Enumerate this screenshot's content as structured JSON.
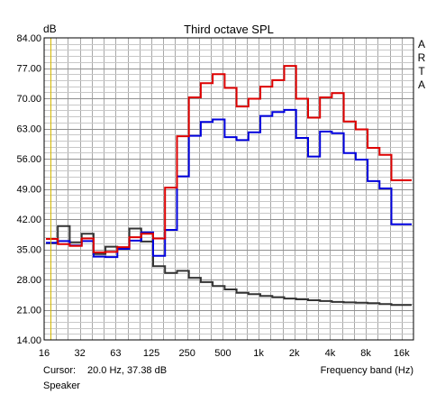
{
  "chart_data": {
    "type": "line",
    "title": "Third octave SPL",
    "ylabel": "dB",
    "xlabel": "Frequency band (Hz)",
    "brand": "ARTA",
    "cursor_label": "Cursor:",
    "cursor_value": "20.0 Hz, 37.38 dB",
    "device_label": "Speaker",
    "ylim": [
      14,
      84
    ],
    "y_ticks": [
      "84.00",
      "77.00",
      "70.00",
      "63.00",
      "56.00",
      "49.00",
      "42.00",
      "35.00",
      "28.00",
      "21.00",
      "14.00"
    ],
    "x_ticks": [
      "16",
      "32",
      "63",
      "125",
      "250",
      "500",
      "1k",
      "2k",
      "4k",
      "8k",
      "16k"
    ],
    "bands": [
      "20",
      "25",
      "31.5",
      "40",
      "50",
      "63",
      "80",
      "100",
      "125",
      "160",
      "200",
      "250",
      "315",
      "400",
      "500",
      "630",
      "800",
      "1k",
      "1.25k",
      "1.6k",
      "2k",
      "2.5k",
      "3.15k",
      "4k",
      "5k",
      "6.3k",
      "8k",
      "10k",
      "12.5k",
      "16k",
      "20k"
    ],
    "grid": true,
    "cursor_band_index": 0,
    "series": [
      {
        "color": "#dd0000",
        "values": [
          37.4,
          36.2,
          35.8,
          37.5,
          34.3,
          34.4,
          35.5,
          37.8,
          38.6,
          37.5,
          49.3,
          61.2,
          70.2,
          73.5,
          75.6,
          72.4,
          68.1,
          69.9,
          72.7,
          74.2,
          77.5,
          69.9,
          65.5,
          70.2,
          71.2,
          64.6,
          62.8,
          58.5,
          56.9,
          51.0,
          51.0
        ]
      },
      {
        "color": "#0000dd",
        "values": [
          36.5,
          36.9,
          35.9,
          36.9,
          33.3,
          33.2,
          35.1,
          37.0,
          38.9,
          33.5,
          39.5,
          51.9,
          61.3,
          64.5,
          65.1,
          61.0,
          60.3,
          62.1,
          65.9,
          66.8,
          67.3,
          60.8,
          56.5,
          62.3,
          61.9,
          57.3,
          55.8,
          50.8,
          49.1,
          40.8,
          40.8
        ]
      },
      {
        "color": "#333333",
        "values": [
          36.4,
          40.4,
          36.6,
          38.6,
          33.9,
          35.6,
          35.3,
          39.8,
          36.8,
          31.1,
          29.5,
          30.0,
          28.4,
          27.4,
          26.5,
          25.7,
          24.9,
          24.6,
          24.2,
          23.9,
          23.6,
          23.4,
          23.2,
          23.0,
          22.8,
          22.7,
          22.6,
          22.5,
          22.3,
          22.1,
          22.1
        ]
      }
    ]
  }
}
